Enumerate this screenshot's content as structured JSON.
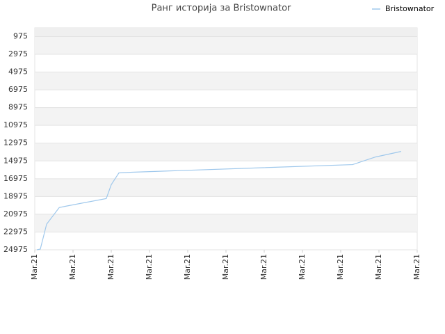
{
  "chart_data": {
    "type": "line",
    "title": "Ранг историја за Bristownator",
    "x": [
      0.055,
      0.145,
      0.31,
      0.64,
      0.82,
      1.87,
      2.0,
      2.2,
      2.55,
      8.31,
      8.91,
      9.58
    ],
    "series": [
      {
        "name": "Bristownator",
        "color": "#9fc8ec",
        "values": [
          24975,
          24897,
          22089,
          20219,
          20063,
          19206,
          17648,
          16323,
          16246,
          15388,
          14532,
          13908
        ]
      }
    ],
    "xlim": [
      0,
      10
    ],
    "xticks": [
      {
        "value": 0,
        "label": "Mar.21"
      },
      {
        "value": 1,
        "label": "Mar.21"
      },
      {
        "value": 2,
        "label": "Mar.21"
      },
      {
        "value": 3,
        "label": "Mar.21"
      },
      {
        "value": 4,
        "label": "Mar.21"
      },
      {
        "value": 5,
        "label": "Mar.21"
      },
      {
        "value": 6,
        "label": "Mar.21"
      },
      {
        "value": 7,
        "label": "Mar.21"
      },
      {
        "value": 8,
        "label": "Mar.21"
      },
      {
        "value": 9,
        "label": "Mar.21"
      },
      {
        "value": 10,
        "label": "Mar.21"
      }
    ],
    "ylim": [
      24975,
      1
    ],
    "yticks": [
      975,
      2975,
      4975,
      6975,
      8975,
      10975,
      12975,
      14975,
      16975,
      18975,
      20975,
      22975,
      24975
    ],
    "grid": true,
    "legend": "top-right"
  }
}
